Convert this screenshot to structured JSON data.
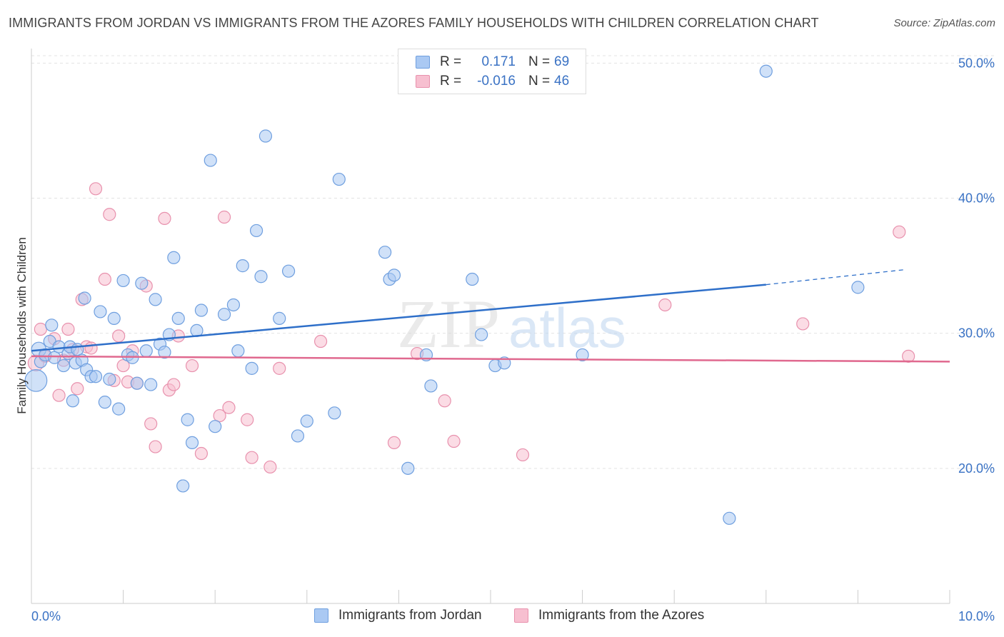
{
  "header": {
    "title": "IMMIGRANTS FROM JORDAN VS IMMIGRANTS FROM THE AZORES FAMILY HOUSEHOLDS WITH CHILDREN CORRELATION CHART",
    "source": "Source: ZipAtlas.com"
  },
  "legend": {
    "r_label": "R =",
    "n_label": "N =",
    "series": [
      {
        "r": "0.171",
        "n": "69"
      },
      {
        "r": "-0.016",
        "n": "46"
      }
    ]
  },
  "colors": {
    "jordan_fill": "#aac9f3",
    "jordan_stroke": "#6f9fdf",
    "jordan_line": "#2e6fc9",
    "azores_fill": "#f7bfd0",
    "azores_stroke": "#e891ad",
    "azores_line": "#e0698f",
    "tick_label": "#3a72c4",
    "grid": "#e3e3e3"
  },
  "watermark": {
    "zip": "ZIP",
    "atlas": "atlas"
  },
  "chart_data": {
    "type": "scatter",
    "title": "IMMIGRANTS FROM JORDAN VS IMMIGRANTS FROM THE AZORES FAMILY HOUSEHOLDS WITH CHILDREN CORRELATION CHART",
    "xlabel": "",
    "ylabel": "Family Households with Children",
    "xlim": [
      0,
      10
    ],
    "ylim": [
      10,
      51.5
    ],
    "x_tick_labels": [
      "0.0%",
      "10.0%"
    ],
    "y_ticks": [
      20,
      30,
      40,
      50
    ],
    "y_tick_labels": [
      "20.0%",
      "30.0%",
      "40.0%",
      "50.0%"
    ],
    "grid": true,
    "legend_position": "top-center",
    "series": [
      {
        "name": "Immigrants from Jordan",
        "r": 0.171,
        "n": 69,
        "trend": {
          "x0": 0.0,
          "y0": 28.7,
          "x1": 8.0,
          "y1": 33.6,
          "dashed_to_x": 9.5,
          "dashed_to_y": 34.7
        },
        "points": [
          [
            0.05,
            26.5,
            1.8
          ],
          [
            0.08,
            28.8,
            1.2
          ],
          [
            0.1,
            27.9,
            1
          ],
          [
            0.15,
            28.4,
            1
          ],
          [
            0.2,
            29.4,
            1
          ],
          [
            0.22,
            30.6,
            1
          ],
          [
            0.25,
            28.2,
            1
          ],
          [
            0.3,
            29.0,
            1
          ],
          [
            0.35,
            27.6,
            1
          ],
          [
            0.4,
            28.5,
            1
          ],
          [
            0.42,
            29.0,
            1
          ],
          [
            0.45,
            25.0,
            1
          ],
          [
            0.48,
            27.8,
            1
          ],
          [
            0.5,
            28.8,
            1
          ],
          [
            0.55,
            28.0,
            1
          ],
          [
            0.58,
            32.6,
            1
          ],
          [
            0.6,
            27.3,
            1
          ],
          [
            0.65,
            26.8,
            1
          ],
          [
            0.7,
            26.8,
            1
          ],
          [
            0.75,
            31.6,
            1
          ],
          [
            0.8,
            24.9,
            1
          ],
          [
            0.85,
            26.6,
            1
          ],
          [
            0.9,
            31.1,
            1
          ],
          [
            0.95,
            24.4,
            1
          ],
          [
            1.0,
            33.9,
            1
          ],
          [
            1.05,
            28.4,
            1
          ],
          [
            1.1,
            28.2,
            1
          ],
          [
            1.15,
            26.3,
            1
          ],
          [
            1.2,
            33.7,
            1
          ],
          [
            1.25,
            28.7,
            1
          ],
          [
            1.3,
            26.2,
            1
          ],
          [
            1.35,
            32.5,
            1
          ],
          [
            1.4,
            29.2,
            1
          ],
          [
            1.45,
            28.6,
            1
          ],
          [
            1.5,
            29.9,
            1
          ],
          [
            1.55,
            35.6,
            1
          ],
          [
            1.6,
            31.1,
            1
          ],
          [
            1.65,
            18.7,
            1
          ],
          [
            1.7,
            23.6,
            1
          ],
          [
            1.75,
            21.9,
            1
          ],
          [
            1.8,
            30.2,
            1
          ],
          [
            1.85,
            31.7,
            1
          ],
          [
            1.95,
            42.8,
            1
          ],
          [
            2.0,
            23.1,
            1
          ],
          [
            2.1,
            31.4,
            1
          ],
          [
            2.2,
            32.1,
            1
          ],
          [
            2.25,
            28.7,
            1
          ],
          [
            2.3,
            35.0,
            1
          ],
          [
            2.4,
            27.4,
            1
          ],
          [
            2.45,
            37.6,
            1
          ],
          [
            2.5,
            34.2,
            1
          ],
          [
            2.55,
            44.6,
            1
          ],
          [
            2.7,
            31.1,
            1
          ],
          [
            2.8,
            34.6,
            1
          ],
          [
            2.9,
            22.4,
            1
          ],
          [
            3.0,
            23.5,
            1
          ],
          [
            3.3,
            24.1,
            1
          ],
          [
            3.35,
            41.4,
            1
          ],
          [
            3.85,
            36.0,
            1
          ],
          [
            3.9,
            34.0,
            1
          ],
          [
            3.95,
            34.3,
            1
          ],
          [
            4.1,
            20.0,
            1
          ],
          [
            4.3,
            28.4,
            1
          ],
          [
            4.35,
            26.1,
            1
          ],
          [
            4.8,
            34.0,
            1
          ],
          [
            4.9,
            29.9,
            1
          ],
          [
            5.05,
            27.6,
            1
          ],
          [
            5.15,
            27.8,
            1
          ],
          [
            6.0,
            28.4,
            1
          ],
          [
            7.6,
            16.3,
            1
          ],
          [
            8.0,
            49.4,
            1
          ],
          [
            9.0,
            33.4,
            1
          ]
        ]
      },
      {
        "name": "Immigrants from the Azores",
        "r": -0.016,
        "n": 46,
        "trend": {
          "x0": 0.0,
          "y0": 28.3,
          "x1": 10.0,
          "y1": 27.9
        },
        "points": [
          [
            0.05,
            27.8,
            1.3
          ],
          [
            0.1,
            30.3,
            1
          ],
          [
            0.15,
            28.3,
            1
          ],
          [
            0.25,
            29.6,
            1
          ],
          [
            0.3,
            25.4,
            1
          ],
          [
            0.35,
            28.0,
            1
          ],
          [
            0.4,
            30.3,
            1
          ],
          [
            0.45,
            28.8,
            1
          ],
          [
            0.5,
            25.9,
            1
          ],
          [
            0.55,
            32.5,
            1
          ],
          [
            0.6,
            29.0,
            1
          ],
          [
            0.65,
            28.9,
            1
          ],
          [
            0.7,
            40.7,
            1
          ],
          [
            0.8,
            34.0,
            1
          ],
          [
            0.85,
            38.8,
            1
          ],
          [
            0.9,
            26.5,
            1
          ],
          [
            0.95,
            29.8,
            1
          ],
          [
            1.0,
            27.6,
            1
          ],
          [
            1.05,
            26.4,
            1
          ],
          [
            1.1,
            28.7,
            1
          ],
          [
            1.15,
            26.3,
            1
          ],
          [
            1.25,
            33.5,
            1
          ],
          [
            1.3,
            23.3,
            1
          ],
          [
            1.35,
            21.6,
            1
          ],
          [
            1.45,
            38.5,
            1
          ],
          [
            1.5,
            25.8,
            1
          ],
          [
            1.55,
            26.2,
            1
          ],
          [
            1.6,
            29.8,
            1
          ],
          [
            1.75,
            27.6,
            1
          ],
          [
            1.85,
            21.1,
            1
          ],
          [
            2.05,
            23.9,
            1
          ],
          [
            2.1,
            38.6,
            1
          ],
          [
            2.15,
            24.5,
            1
          ],
          [
            2.35,
            23.6,
            1
          ],
          [
            2.4,
            20.8,
            1
          ],
          [
            2.6,
            20.1,
            1
          ],
          [
            2.7,
            27.4,
            1
          ],
          [
            3.15,
            29.4,
            1
          ],
          [
            3.95,
            21.9,
            1
          ],
          [
            4.2,
            28.5,
            1
          ],
          [
            4.5,
            25.0,
            1
          ],
          [
            4.6,
            22.0,
            1
          ],
          [
            5.35,
            21.0,
            1
          ],
          [
            6.9,
            32.1,
            1
          ],
          [
            8.4,
            30.7,
            1
          ],
          [
            9.45,
            37.5,
            1
          ],
          [
            9.55,
            28.3,
            1
          ]
        ]
      }
    ]
  }
}
